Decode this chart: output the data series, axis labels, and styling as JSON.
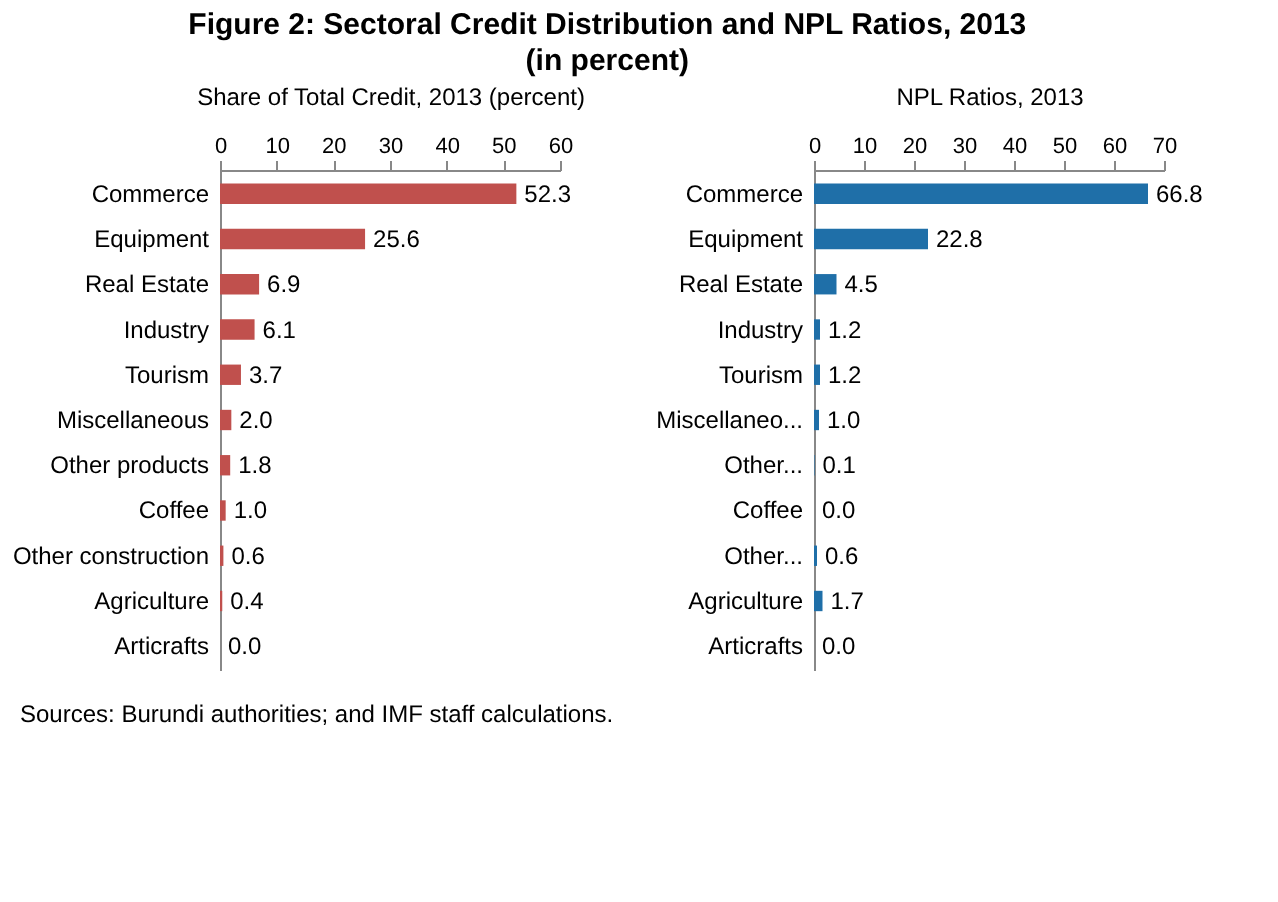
{
  "chart_data": [
    {
      "type": "bar",
      "orientation": "horizontal",
      "title": "Figure 2: Sectoral Credit Distribution and NPL Ratios, 2013",
      "subtitle": "(in percent)",
      "xlabel": "Share of Total Credit,  2013 (percent)",
      "categories": [
        "Commerce",
        "Equipment",
        "Real Estate",
        "Industry",
        "Tourism",
        "Miscellaneous",
        "Other products",
        "Coffee",
        "Other construction",
        "Agriculture",
        "Articrafts"
      ],
      "values": [
        52.3,
        25.6,
        6.9,
        6.1,
        3.7,
        2.0,
        1.8,
        1.0,
        0.6,
        0.4,
        0.0
      ],
      "color": "#c0504d",
      "value_labels": [
        "52.3",
        "25.6",
        "6.9",
        "6.1",
        "3.7",
        "2.0",
        "1.8",
        "1.0",
        "0.6",
        "0.4",
        "0.0"
      ],
      "xlim": [
        0,
        60
      ],
      "xticks": [
        0,
        10,
        20,
        30,
        40,
        50,
        60
      ],
      "grid": false,
      "annotations": [
        "Sources: Burundi authorities; and IMF staff calculations."
      ]
    },
    {
      "type": "bar",
      "orientation": "horizontal",
      "xlabel": "NPL Ratios, 2013",
      "categories": [
        "Commerce",
        "Equipment",
        "Real Estate",
        "Industry",
        "Tourism",
        "Miscellaneo...",
        "Other...",
        "Coffee",
        "Other...",
        "Agriculture",
        "Articrafts"
      ],
      "values": [
        66.8,
        22.8,
        4.5,
        1.2,
        1.2,
        1.0,
        0.1,
        0.0,
        0.6,
        1.7,
        0.0
      ],
      "color": "#1f6fa8",
      "value_labels": [
        "66.8",
        "22.8",
        "4.5",
        "1.2",
        "1.2",
        "1.0",
        "0.1",
        "0.0",
        "0.6",
        "1.7",
        "0.0"
      ],
      "xlim": [
        0,
        70
      ],
      "xticks": [
        0,
        10,
        20,
        30,
        40,
        50,
        60,
        70
      ],
      "grid": false
    }
  ]
}
